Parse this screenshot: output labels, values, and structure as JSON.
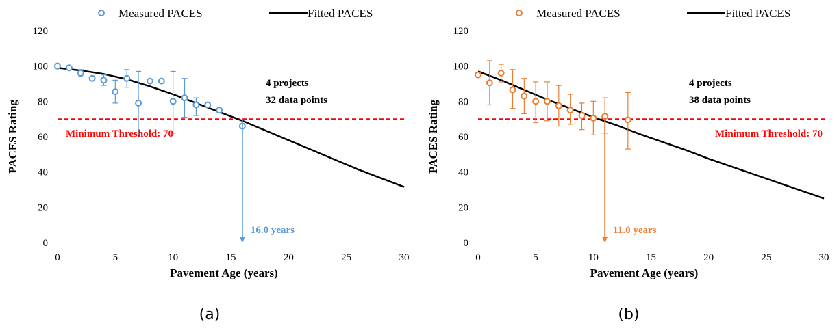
{
  "chart_data": [
    {
      "type": "scatter",
      "panel_label": "(a)",
      "legend": {
        "measured": "Measured PACES",
        "fitted": "Fitted PACES",
        "placement": "top"
      },
      "xlabel": "Pavement Age (years)",
      "ylabel": "PACES Rating",
      "xlim": [
        0,
        30
      ],
      "ylim": [
        0,
        120
      ],
      "xticks": [
        0,
        5,
        10,
        15,
        20,
        25,
        30
      ],
      "yticks": [
        0,
        20,
        40,
        60,
        80,
        100,
        120
      ],
      "grid": false,
      "color": "#5b9bd5",
      "annotation_lines": [
        "4 projects",
        "32 data points"
      ],
      "threshold": {
        "value": 70,
        "label": "Minimum Threshold: 70",
        "color": "#ff0000"
      },
      "service_life": {
        "x": 16.0,
        "label": "16.0 years"
      },
      "measured": [
        {
          "x": 0,
          "y": 100,
          "low": 99,
          "high": 101
        },
        {
          "x": 1,
          "y": 99,
          "low": 98,
          "high": 100
        },
        {
          "x": 2,
          "y": 96,
          "low": 94,
          "high": 98
        },
        {
          "x": 3,
          "y": 93,
          "low": 92,
          "high": 94
        },
        {
          "x": 4,
          "y": 92,
          "low": 89,
          "high": 95
        },
        {
          "x": 5,
          "y": 85.5,
          "low": 79,
          "high": 92
        },
        {
          "x": 6,
          "y": 93,
          "low": 88,
          "high": 98
        },
        {
          "x": 7,
          "y": 79,
          "low": 61,
          "high": 97
        },
        {
          "x": 8,
          "y": 91.5,
          "low": 90.5,
          "high": 92.5
        },
        {
          "x": 9,
          "y": 91.5,
          "low": 90.5,
          "high": 92.5
        },
        {
          "x": 10,
          "y": 80,
          "low": 62,
          "high": 97
        },
        {
          "x": 11,
          "y": 82,
          "low": 71,
          "high": 93
        },
        {
          "x": 12,
          "y": 78,
          "low": 72,
          "high": 82
        },
        {
          "x": 13,
          "y": 78,
          "low": 77,
          "high": 79
        },
        {
          "x": 14,
          "y": 75,
          "low": 74,
          "high": 76
        },
        {
          "x": 16,
          "y": 66,
          "low": 65,
          "high": 67
        }
      ],
      "fitted": {
        "x": [
          0,
          2,
          4,
          6,
          8,
          10,
          12,
          14,
          16,
          18,
          20,
          22,
          24,
          26,
          28,
          30
        ],
        "y": [
          99,
          97.5,
          95.5,
          92.5,
          88.5,
          84,
          79,
          74,
          69,
          63.5,
          58,
          52.5,
          47,
          41.5,
          36.5,
          31.5
        ]
      }
    },
    {
      "type": "scatter",
      "panel_label": "(b)",
      "legend": {
        "measured": "Measured PACES",
        "fitted": "Fitted PACES",
        "placement": "top"
      },
      "xlabel": "Pavement Age (years)",
      "ylabel": "PACES Rating",
      "xlim": [
        0,
        30
      ],
      "ylim": [
        0,
        120
      ],
      "xticks": [
        0,
        5,
        10,
        15,
        20,
        25,
        30
      ],
      "yticks": [
        0,
        20,
        40,
        60,
        80,
        100,
        120
      ],
      "grid": false,
      "color": "#ed7d31",
      "annotation_lines": [
        "4 projects",
        "38 data points"
      ],
      "threshold": {
        "value": 70,
        "label": "Minimum Threshold: 70",
        "color": "#ff0000"
      },
      "service_life": {
        "x": 11.0,
        "label": "11.0 years"
      },
      "measured": [
        {
          "x": 0,
          "y": 95,
          "low": 94,
          "high": 96
        },
        {
          "x": 1,
          "y": 90.5,
          "low": 78,
          "high": 103
        },
        {
          "x": 2,
          "y": 96,
          "low": 91,
          "high": 101
        },
        {
          "x": 3,
          "y": 86.5,
          "low": 76,
          "high": 98
        },
        {
          "x": 4,
          "y": 83,
          "low": 73,
          "high": 93
        },
        {
          "x": 5,
          "y": 80,
          "low": 68,
          "high": 91
        },
        {
          "x": 6,
          "y": 80,
          "low": 69,
          "high": 91
        },
        {
          "x": 7,
          "y": 77.5,
          "low": 66,
          "high": 89
        },
        {
          "x": 8,
          "y": 75,
          "low": 67,
          "high": 84
        },
        {
          "x": 9,
          "y": 72,
          "low": 64,
          "high": 79
        },
        {
          "x": 10,
          "y": 70.5,
          "low": 61,
          "high": 80
        },
        {
          "x": 11,
          "y": 71.5,
          "low": 62,
          "high": 82
        },
        {
          "x": 13,
          "y": 69.5,
          "low": 53,
          "high": 85
        }
      ],
      "fitted": {
        "x": [
          0,
          2,
          4,
          6,
          8,
          10,
          12,
          14,
          16,
          18,
          20,
          22,
          24,
          26,
          28,
          30
        ],
        "y": [
          97,
          92,
          86.5,
          81,
          76,
          71,
          66.5,
          61.5,
          57,
          52.5,
          47.5,
          43,
          38.5,
          34,
          29.5,
          25
        ]
      }
    }
  ]
}
